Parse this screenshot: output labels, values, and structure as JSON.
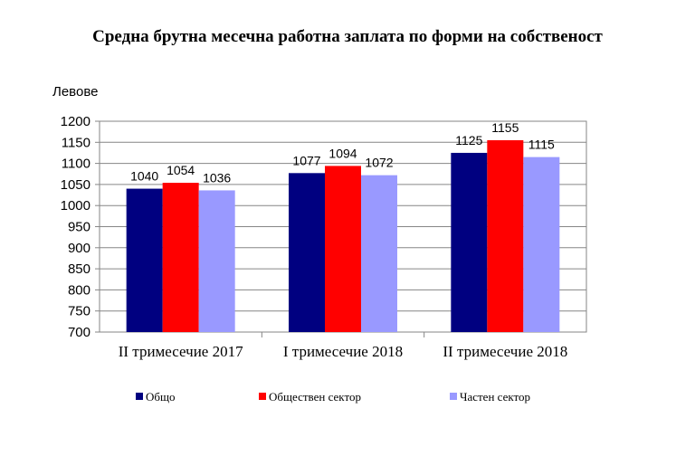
{
  "chart_data": {
    "type": "bar",
    "title": "Средна брутна месечна работна заплата по форми на собственост",
    "ylabel": "Левове",
    "xlabel": "",
    "categories": [
      "II тримесечие 2017",
      "I тримесечие 2018",
      "II тримесечие 2018"
    ],
    "series": [
      {
        "name": "Общо",
        "values": [
          1040,
          1077,
          1125
        ],
        "color": "#000080"
      },
      {
        "name": "Обществен сектор",
        "values": [
          1054,
          1094,
          1155
        ],
        "color": "#FF0000"
      },
      {
        "name": "Частен сектор",
        "values": [
          1036,
          1072,
          1115
        ],
        "color": "#9999FF"
      }
    ],
    "ylim": [
      700,
      1200
    ],
    "yticks": [
      700,
      750,
      800,
      850,
      900,
      950,
      1000,
      1050,
      1100,
      1150,
      1200
    ],
    "grid": true,
    "legend": "bottom",
    "data_labels": true
  }
}
